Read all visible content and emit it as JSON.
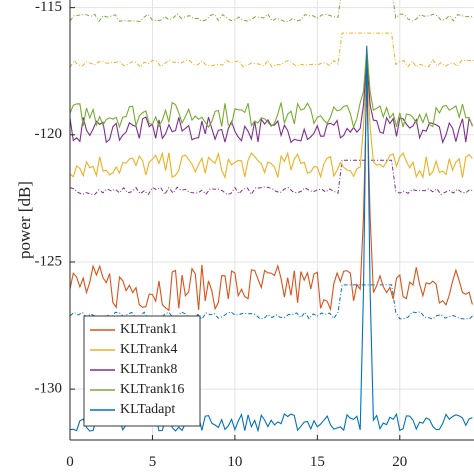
{
  "chart_data": {
    "type": "line",
    "title": "",
    "xlabel": "",
    "ylabel": "power [dB]",
    "xlim": [
      0,
      24.5
    ],
    "ylim": [
      -132,
      -114.7
    ],
    "x_ticks": [
      0,
      5,
      10,
      15,
      20
    ],
    "y_ticks": [
      -115,
      -120,
      -125,
      -130
    ],
    "grid": true,
    "legend_position": "bottom-left",
    "series": [
      {
        "name": "KLTrank1",
        "color": "#d95319",
        "x": [
          0,
          1,
          2,
          3,
          4,
          5,
          6,
          7,
          8,
          9,
          10,
          11,
          12,
          13,
          14,
          15,
          16,
          17,
          18,
          19,
          20,
          21,
          22,
          23,
          24.5
        ],
        "y": [
          -126.0,
          -125.8,
          -126.4,
          -125.6,
          -126.1,
          -125.9,
          -125.4,
          -125.8,
          -126.3,
          -125.7,
          -126.0,
          -125.8,
          -126.2,
          -125.9,
          -125.8,
          -126.1,
          -125.6,
          -126.0,
          -118.0,
          -126.0,
          -125.8,
          -126.2,
          -125.9,
          -126.1,
          -126.0
        ]
      },
      {
        "name": "KLTrank4",
        "color": "#edb120",
        "x": [
          0,
          1,
          2,
          3,
          4,
          5,
          6,
          7,
          8,
          9,
          10,
          11,
          12,
          13,
          14,
          15,
          16,
          17,
          18,
          19,
          20,
          21,
          22,
          23,
          24.5
        ],
        "y": [
          -121.2,
          -121.0,
          -121.3,
          -120.9,
          -121.1,
          -121.0,
          -120.8,
          -121.2,
          -121.0,
          -121.1,
          -120.9,
          -121.1,
          -121.0,
          -121.2,
          -121.0,
          -121.1,
          -121.0,
          -120.9,
          -116.9,
          -121.0,
          -121.1,
          -120.9,
          -121.0,
          -121.1,
          -121.0
        ]
      },
      {
        "name": "KLTrank8",
        "color": "#7e2f8e",
        "x": [
          0,
          1,
          2,
          3,
          4,
          5,
          6,
          7,
          8,
          9,
          10,
          11,
          12,
          13,
          14,
          15,
          16,
          17,
          18,
          19,
          20,
          21,
          22,
          23,
          24.5
        ],
        "y": [
          -119.8,
          -119.6,
          -119.9,
          -119.7,
          -119.8,
          -119.5,
          -119.7,
          -119.9,
          -119.8,
          -119.6,
          -119.7,
          -119.9,
          -119.8,
          -119.7,
          -119.6,
          -119.8,
          -119.7,
          -119.6,
          -117.0,
          -119.5,
          -119.7,
          -119.8,
          -119.6,
          -119.5,
          -119.6
        ]
      },
      {
        "name": "KLTrank16",
        "color": "#77ac30",
        "x": [
          0,
          1,
          2,
          3,
          4,
          5,
          6,
          7,
          8,
          9,
          10,
          11,
          12,
          13,
          14,
          15,
          16,
          17,
          18,
          19,
          20,
          21,
          22,
          23,
          24.5
        ],
        "y": [
          -119.2,
          -119.0,
          -119.3,
          -118.9,
          -119.1,
          -119.0,
          -118.8,
          -119.2,
          -119.1,
          -118.9,
          -119.0,
          -119.2,
          -119.0,
          -118.9,
          -119.1,
          -119.0,
          -118.9,
          -119.0,
          -116.6,
          -119.0,
          -119.1,
          -118.9,
          -119.0,
          -119.1,
          -119.0
        ]
      },
      {
        "name": "KLTadapt",
        "color": "#0072bd",
        "x": [
          0,
          1,
          2,
          3,
          4,
          5,
          6,
          7,
          8,
          9,
          10,
          11,
          12,
          13,
          14,
          15,
          16,
          17,
          18,
          19,
          20,
          21,
          22,
          23,
          24.5
        ],
        "y": [
          -131.3,
          -131.1,
          -131.4,
          -131.0,
          -131.3,
          -131.2,
          -131.0,
          -131.3,
          -131.1,
          -131.2,
          -131.0,
          -131.3,
          -131.2,
          -131.1,
          -131.3,
          -131.2,
          -131.0,
          -131.2,
          -116.5,
          -131.2,
          -131.1,
          -131.3,
          -131.2,
          -131.0,
          -131.2
        ]
      }
    ]
  }
}
